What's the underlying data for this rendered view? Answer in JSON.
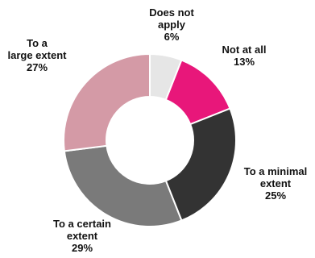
{
  "chart_data": {
    "type": "donut",
    "title": "",
    "slices": [
      {
        "label_lines": [
          "Does not",
          "apply"
        ],
        "value_label": "6%",
        "value": 6,
        "color": "#e6e6e6"
      },
      {
        "label_lines": [
          "Not at all"
        ],
        "value_label": "13%",
        "value": 13,
        "color": "#e8177a"
      },
      {
        "label_lines": [
          "To a minimal",
          "extent"
        ],
        "value_label": "25%",
        "value": 25,
        "color": "#333333"
      },
      {
        "label_lines": [
          "To a certain",
          "extent"
        ],
        "value_label": "29%",
        "value": 29,
        "color": "#7a7a7a"
      },
      {
        "label_lines": [
          "To a",
          "large extent"
        ],
        "value_label": "27%",
        "value": 27,
        "color": "#d49aa6"
      }
    ],
    "start": "top",
    "direction": "clockwise",
    "legend": "none"
  }
}
